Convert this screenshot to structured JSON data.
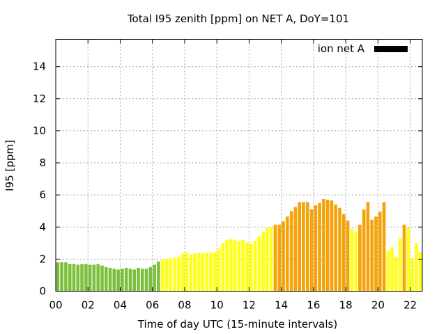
{
  "chart_data": {
    "type": "bar",
    "title": "Total I95 zenith [ppm] on NET A, DoY=101",
    "xlabel": "Time of day UTC (15-minute intervals)",
    "ylabel": "I95 [ppm]",
    "xlim": [
      0,
      22.75
    ],
    "ylim": [
      0,
      15.7
    ],
    "x_ticks": [
      0,
      2,
      4,
      6,
      8,
      10,
      12,
      14,
      16,
      18,
      20,
      22
    ],
    "x_tick_labels": [
      "00",
      "02",
      "04",
      "06",
      "08",
      "10",
      "12",
      "14",
      "16",
      "18",
      "20",
      "22"
    ],
    "y_ticks": [
      0,
      2,
      4,
      6,
      8,
      10,
      12,
      14
    ],
    "y_tick_labels": [
      "0",
      "2",
      "4",
      "6",
      "8",
      "10",
      "12",
      "14"
    ],
    "grid": true,
    "legend": {
      "label": "ion net A",
      "color": "#000000",
      "position": "top-right"
    },
    "bar_interval_hours": 0.25,
    "x_start": 0.125,
    "values": [
      1.8,
      1.8,
      1.8,
      1.7,
      1.7,
      1.65,
      1.7,
      1.7,
      1.65,
      1.65,
      1.7,
      1.6,
      1.5,
      1.45,
      1.4,
      1.35,
      1.4,
      1.45,
      1.4,
      1.35,
      1.45,
      1.4,
      1.4,
      1.5,
      1.65,
      1.85,
      1.95,
      2.0,
      2.05,
      2.1,
      2.15,
      2.35,
      2.4,
      2.3,
      2.35,
      2.4,
      2.35,
      2.4,
      2.4,
      2.45,
      2.65,
      3.0,
      3.2,
      3.25,
      3.2,
      3.1,
      3.2,
      3.05,
      2.95,
      3.15,
      3.45,
      3.7,
      3.95,
      4.0,
      4.15,
      4.15,
      4.35,
      4.65,
      5.0,
      5.25,
      5.55,
      5.55,
      5.55,
      5.1,
      5.35,
      5.5,
      5.75,
      5.7,
      5.65,
      5.4,
      5.2,
      4.8,
      4.4,
      3.9,
      3.7,
      4.15,
      5.1,
      5.55,
      4.45,
      4.65,
      4.95,
      5.55,
      2.5,
      2.75,
      2.1,
      3.3,
      4.15,
      3.95,
      2.05,
      3.0,
      2.45
    ],
    "colors": [
      "#7cbf3c",
      "#7cbf3c",
      "#7cbf3c",
      "#7cbf3c",
      "#7cbf3c",
      "#7cbf3c",
      "#7cbf3c",
      "#7cbf3c",
      "#7cbf3c",
      "#7cbf3c",
      "#7cbf3c",
      "#7cbf3c",
      "#7cbf3c",
      "#7cbf3c",
      "#7cbf3c",
      "#7cbf3c",
      "#7cbf3c",
      "#7cbf3c",
      "#7cbf3c",
      "#7cbf3c",
      "#7cbf3c",
      "#7cbf3c",
      "#7cbf3c",
      "#7cbf3c",
      "#7cbf3c",
      "#7cbf3c",
      "#ffff1a",
      "#ffff1a",
      "#ffff1a",
      "#ffff1a",
      "#ffff1a",
      "#ffff1a",
      "#ffff1a",
      "#ffff1a",
      "#ffff1a",
      "#ffff1a",
      "#ffff1a",
      "#ffff1a",
      "#ffff1a",
      "#ffff1a",
      "#ffff1a",
      "#ffff1a",
      "#ffff1a",
      "#ffff1a",
      "#ffff1a",
      "#ffff1a",
      "#ffff1a",
      "#ffff1a",
      "#ffff1a",
      "#ffff1a",
      "#ffff1a",
      "#ffff1a",
      "#ffff1a",
      "#ffff1a",
      "#f5a30a",
      "#f5a30a",
      "#f5a30a",
      "#f5a30a",
      "#f5a30a",
      "#f5a30a",
      "#f5a30a",
      "#f5a30a",
      "#f5a30a",
      "#f5a30a",
      "#f5a30a",
      "#f5a30a",
      "#f5a30a",
      "#f5a30a",
      "#f5a30a",
      "#f5a30a",
      "#f5a30a",
      "#f5a30a",
      "#f5a30a",
      "#ffff1a",
      "#ffff1a",
      "#f5a30a",
      "#f5a30a",
      "#f5a30a",
      "#f5a30a",
      "#f5a30a",
      "#f5a30a",
      "#f5a30a",
      "#ffff1a",
      "#ffff1a",
      "#ffff1a",
      "#ffff1a",
      "#f5a30a",
      "#ffff1a",
      "#ffff1a",
      "#ffff1a",
      "#ffff1a"
    ]
  }
}
